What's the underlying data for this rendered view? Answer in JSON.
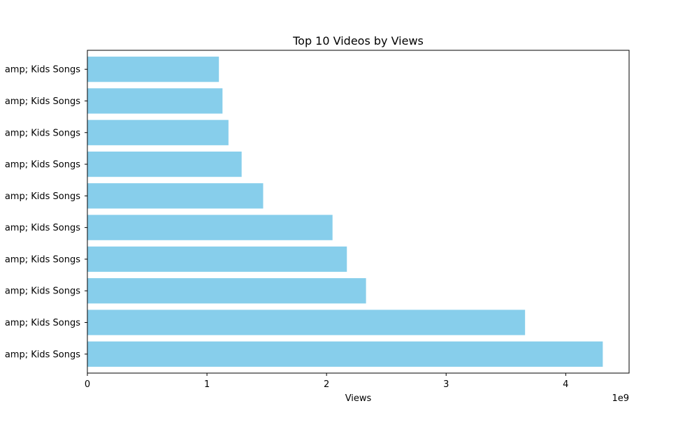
{
  "chart_data": {
    "type": "bar",
    "orientation": "horizontal",
    "title": "Top 10 Videos by Views",
    "xlabel": "Views",
    "ylabel": "",
    "x_offset_text": "1e9",
    "xlim": [
      0,
      4.53
    ],
    "x_ticks": [
      0,
      1,
      2,
      3,
      4
    ],
    "x_tick_labels": [
      "0",
      "1",
      "2",
      "3",
      "4"
    ],
    "categories": [
      "amp; Kids Songs",
      "amp; Kids Songs",
      "amp; Kids Songs",
      "amp; Kids Songs",
      "amp; Kids Songs",
      "amp; Kids Songs",
      "amp; Kids Songs",
      "amp; Kids Songs",
      "amp; Kids Songs",
      "amp; Kids Songs"
    ],
    "values": [
      4.31,
      3.66,
      2.33,
      2.17,
      2.05,
      1.47,
      1.29,
      1.18,
      1.13,
      1.1
    ],
    "value_unit_multiplier": 1000000000,
    "bar_color": "#87ceeb",
    "grid": false,
    "legend": "none"
  }
}
